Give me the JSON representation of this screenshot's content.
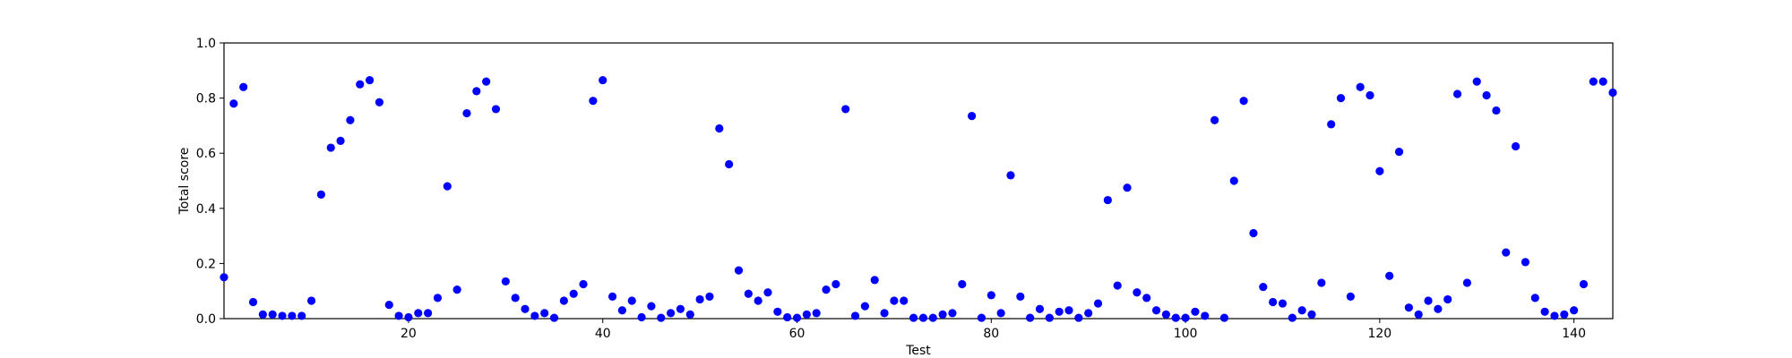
{
  "chart_data": {
    "type": "scatter",
    "title": "",
    "xlabel": "Test",
    "ylabel": "Total score",
    "xlim": [
      1,
      144
    ],
    "ylim": [
      0.0,
      1.0
    ],
    "xticks": [
      20,
      40,
      60,
      80,
      100,
      120,
      140
    ],
    "xtick_labels": [
      "20",
      "40",
      "60",
      "80",
      "100",
      "120",
      "140"
    ],
    "yticks": [
      0.0,
      0.2,
      0.4,
      0.6,
      0.8,
      1.0
    ],
    "ytick_labels": [
      "0.0",
      "0.2",
      "0.4",
      "0.6",
      "0.8",
      "1.0"
    ],
    "grid": false,
    "marker_color": "#0000ff",
    "x": [
      1,
      2,
      3,
      4,
      5,
      6,
      7,
      8,
      9,
      10,
      11,
      12,
      13,
      14,
      15,
      16,
      17,
      18,
      19,
      20,
      21,
      22,
      23,
      24,
      25,
      26,
      27,
      28,
      29,
      30,
      31,
      32,
      33,
      34,
      35,
      36,
      37,
      38,
      39,
      40,
      41,
      42,
      43,
      44,
      45,
      46,
      47,
      48,
      49,
      50,
      51,
      52,
      53,
      54,
      55,
      56,
      57,
      58,
      59,
      60,
      61,
      62,
      63,
      64,
      65,
      66,
      67,
      68,
      69,
      70,
      71,
      72,
      73,
      74,
      75,
      76,
      77,
      78,
      79,
      80,
      81,
      82,
      83,
      84,
      85,
      86,
      87,
      88,
      89,
      90,
      91,
      92,
      93,
      94,
      95,
      96,
      97,
      98,
      99,
      100,
      101,
      102,
      103,
      104,
      105,
      106,
      107,
      108,
      109,
      110,
      111,
      112,
      113,
      114,
      115,
      116,
      117,
      118,
      119,
      120,
      121,
      122,
      123,
      124,
      125,
      126,
      127,
      128,
      129,
      130,
      131,
      132,
      133,
      134,
      135,
      136,
      137,
      138,
      139,
      140,
      141,
      142,
      143,
      144
    ],
    "y": [
      0.15,
      0.78,
      0.84,
      0.06,
      0.015,
      0.015,
      0.01,
      0.01,
      0.01,
      0.065,
      0.45,
      0.62,
      0.645,
      0.72,
      0.85,
      0.865,
      0.785,
      0.05,
      0.01,
      0.005,
      0.02,
      0.02,
      0.075,
      0.48,
      0.105,
      0.745,
      0.825,
      0.86,
      0.76,
      0.135,
      0.075,
      0.035,
      0.01,
      0.02,
      0.003,
      0.065,
      0.09,
      0.125,
      0.79,
      0.865,
      0.08,
      0.03,
      0.065,
      0.005,
      0.045,
      0.003,
      0.02,
      0.035,
      0.015,
      0.07,
      0.08,
      0.69,
      0.56,
      0.175,
      0.09,
      0.065,
      0.095,
      0.025,
      0.005,
      0.003,
      0.015,
      0.02,
      0.105,
      0.125,
      0.76,
      0.01,
      0.045,
      0.14,
      0.02,
      0.065,
      0.065,
      0.003,
      0.003,
      0.003,
      0.015,
      0.02,
      0.125,
      0.735,
      0.003,
      0.085,
      0.02,
      0.52,
      0.08,
      0.003,
      0.035,
      0.003,
      0.025,
      0.03,
      0.003,
      0.02,
      0.055,
      0.43,
      0.12,
      0.475,
      0.095,
      0.075,
      0.03,
      0.015,
      0.003,
      0.003,
      0.025,
      0.01,
      0.72,
      0.003,
      0.5,
      0.79,
      0.31,
      0.115,
      0.06,
      0.055,
      0.003,
      0.03,
      0.015,
      0.13,
      0.705,
      0.8,
      0.08,
      0.84,
      0.81,
      0.535,
      0.155,
      0.605,
      0.04,
      0.015,
      0.065,
      0.035,
      0.07,
      0.815,
      0.13,
      0.86,
      0.81,
      0.755,
      0.24,
      0.625,
      0.205,
      0.075,
      0.025,
      0.01,
      0.015,
      0.03,
      0.125,
      0.86,
      0.86,
      0.82
    ]
  }
}
